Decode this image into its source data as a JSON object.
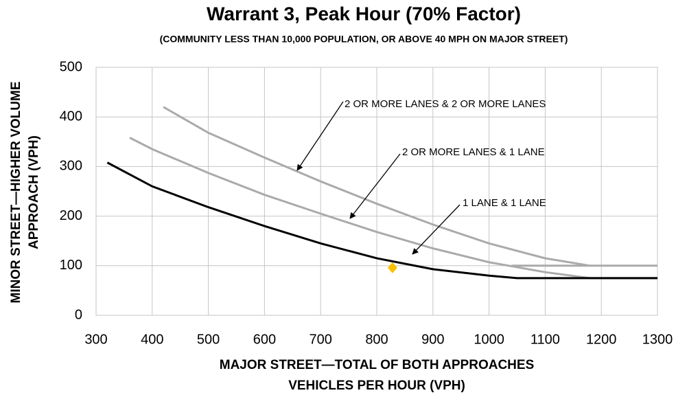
{
  "chart_data": {
    "type": "line",
    "title": "Warrant 3, Peak Hour (70% Factor)",
    "subtitle": "(COMMUNITY LESS THAN 10,000 POPULATION, OR ABOVE 40 MPH ON MAJOR STREET)",
    "y_label": [
      "MINOR STREET—HIGHER VOLUME",
      "APPROACH (VPH)"
    ],
    "x_label": [
      "MAJOR STREET—TOTAL OF BOTH APPROACHES",
      "VEHICLES PER HOUR (VPH)"
    ],
    "xlim": [
      300,
      1300
    ],
    "xticks": [
      300,
      400,
      500,
      600,
      700,
      800,
      900,
      1000,
      1100,
      1200,
      1300
    ],
    "ylim": [
      0,
      500
    ],
    "yticks": [
      0,
      100,
      200,
      300,
      400,
      500
    ],
    "grid": true,
    "series": [
      {
        "name": "2 OR MORE LANES & 2 OR MORE LANES",
        "color": "#aaaaaa",
        "x": [
          420,
          500,
          600,
          700,
          800,
          900,
          1000,
          1100,
          1180,
          1300,
          null,
          1040,
          1180
        ],
        "values": [
          420,
          368,
          318,
          270,
          225,
          183,
          145,
          115,
          100,
          100,
          null,
          100,
          100
        ]
      },
      {
        "name": "2 OR MORE LANES & 1 LANE",
        "color": "#aaaaaa",
        "x": [
          360,
          400,
          500,
          600,
          700,
          800,
          900,
          1000,
          1100,
          1180,
          1300
        ],
        "values": [
          358,
          335,
          287,
          243,
          205,
          168,
          135,
          107,
          87,
          75,
          75
        ]
      },
      {
        "name": "1 LANE & 1 LANE",
        "color": "#000000",
        "x": [
          320,
          400,
          500,
          600,
          700,
          800,
          900,
          1000,
          1050,
          1300
        ],
        "values": [
          308,
          260,
          218,
          180,
          145,
          115,
          93,
          80,
          75,
          75
        ]
      }
    ],
    "highlight": {
      "x": 828,
      "y": 96,
      "color": "#f9c000"
    }
  }
}
